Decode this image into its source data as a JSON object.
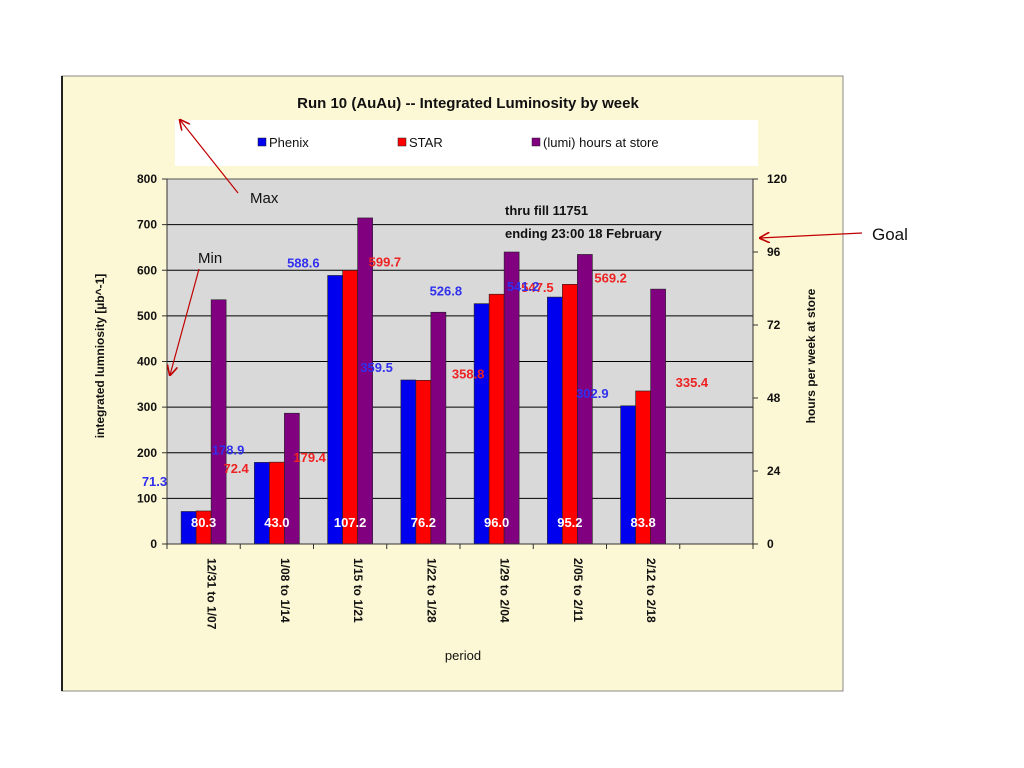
{
  "chart_data": {
    "type": "bar",
    "title": "Run 10 (AuAu) -- Integrated Luminosity by week",
    "xlabel": "period",
    "ylabel": "integrated lumniosity  [µb^-1]",
    "y2label": "hours per week at store",
    "categories": [
      "12/31 to 1/07",
      "1/08 to 1/14",
      "1/15 to 1/21",
      "1/22 to 1/28",
      "1/29 to 2/04",
      "2/05 to 2/11",
      "2/12 to 2/18"
    ],
    "ylim": [
      0,
      800
    ],
    "yticks": [
      0,
      100,
      200,
      300,
      400,
      500,
      600,
      700,
      800
    ],
    "y2lim": [
      0,
      120
    ],
    "y2ticks": [
      0,
      24,
      48,
      72,
      96,
      120
    ],
    "extra_slot": true,
    "grid": true,
    "legend_position": "top",
    "series": [
      {
        "name": "Phenix",
        "axis": "left",
        "color": "#0000ee",
        "label_color": "#3030ee",
        "values": [
          71.3,
          178.9,
          588.6,
          359.5,
          526.8,
          541.2,
          302.9
        ],
        "labels": [
          "71.3",
          "178.9",
          "588.6",
          "359.5",
          "526.8",
          "541.2",
          "302.9"
        ]
      },
      {
        "name": "STAR",
        "axis": "left",
        "color": "#ff0000",
        "label_color": "#ee2222",
        "values": [
          72.4,
          179.4,
          599.7,
          358.8,
          547.5,
          569.2,
          335.4
        ],
        "labels": [
          "72.4",
          "179.4",
          "599.7",
          "358.8",
          "547.5",
          "569.2",
          "335.4"
        ]
      },
      {
        "name": "(lumi) hours at store",
        "axis": "right",
        "color": "#800080",
        "label_color": "#ffffff",
        "values": [
          80.3,
          43.0,
          107.2,
          76.2,
          96.0,
          95.2,
          83.8
        ],
        "labels": [
          "80.3",
          "43.0",
          "107.2",
          "76.2",
          "96.0",
          "95.2",
          "83.8"
        ]
      }
    ],
    "annotation": [
      "thru fill 11751",
      "ending 23:00 18 February"
    ],
    "callouts": {
      "max": "Max",
      "min": "Min",
      "goal": "Goal"
    },
    "colors": {
      "panel_bg": "#fcf7d4",
      "plot_bg": "#d9d9d9",
      "arrow": "#c00000"
    }
  }
}
